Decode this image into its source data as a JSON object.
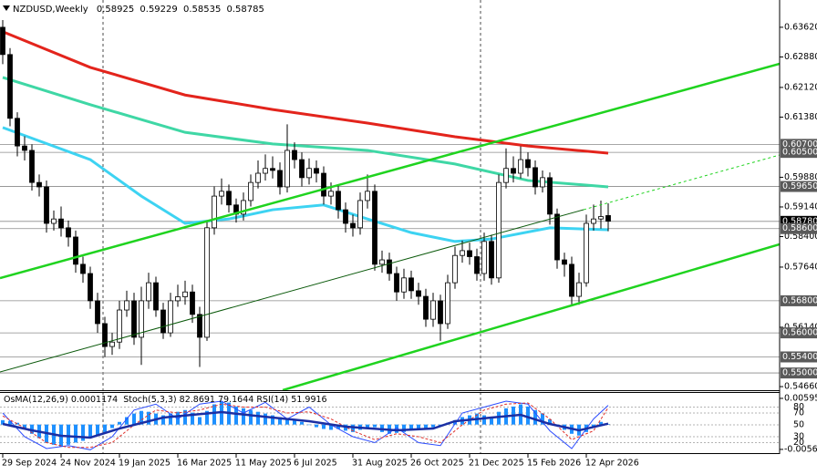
{
  "chart_data": [
    {
      "type": "candlestick",
      "symbol": "NZDUSD,Weekly",
      "categories": [
        "29 Sep 2024",
        null,
        null,
        null,
        null,
        null,
        null,
        null,
        "24 Nov 2024",
        null,
        null,
        null,
        null,
        null,
        null,
        null,
        "19 Jan 2025",
        null,
        null,
        null,
        null,
        null,
        null,
        null,
        "16 Mar 2025",
        null,
        null,
        null,
        null,
        null,
        null,
        null,
        "11 May 2025",
        null,
        null,
        null,
        null,
        null,
        null,
        null,
        "6 Jul 2025",
        null,
        null,
        null,
        null,
        null,
        null,
        null,
        "31 Aug 2025",
        null,
        null,
        null,
        null,
        null,
        null,
        null,
        "26 Oct 2025",
        null,
        null,
        null,
        null,
        null,
        null,
        null,
        "21 Dec 2025",
        null,
        null,
        null,
        null,
        null,
        null,
        null,
        "15 Feb 2026",
        null,
        null,
        null,
        null,
        null,
        null,
        null,
        "12 Apr 2026",
        null,
        null,
        null
      ],
      "open": [
        0.6362,
        0.6294,
        0.6135,
        0.6066,
        0.6055,
        0.5975,
        0.5964,
        0.5873,
        0.5884,
        0.5862,
        0.5839,
        0.5771,
        0.5748,
        0.568,
        0.5623,
        0.5566,
        0.5577,
        0.5657,
        0.568,
        0.5589,
        0.568,
        0.5725,
        0.5657,
        0.56,
        0.568,
        0.569,
        0.5702,
        0.5646,
        0.5589,
        0.5862,
        0.5941,
        0.5953,
        0.5919,
        0.5896,
        0.593,
        0.5975,
        0.5998,
        0.601,
        0.6005,
        0.5964,
        0.6055,
        0.6032,
        0.5987,
        0.601,
        0.5998,
        0.5941,
        0.5953,
        0.5907,
        0.5873,
        0.5862,
        0.593,
        0.5953,
        0.5771,
        0.5782,
        0.5748,
        0.5702,
        0.5737,
        0.5705,
        0.5691,
        0.5634,
        0.568,
        0.5623,
        0.5725,
        0.5793,
        0.5805,
        0.579,
        0.5748,
        0.5828,
        0.5737,
        0.5975,
        0.601,
        0.5998,
        0.6032,
        0.6012,
        0.5964,
        0.5987,
        0.5896,
        0.5782,
        0.5771,
        0.5691,
        0.5725,
        0.5873,
        0.5884,
        0.58925
      ],
      "high": [
        0.638,
        0.631,
        0.615,
        0.609,
        0.607,
        0.5995,
        0.598,
        0.5905,
        0.5915,
        0.588,
        0.5855,
        0.579,
        0.5765,
        0.57,
        0.564,
        0.56,
        0.568,
        0.5705,
        0.57,
        0.5715,
        0.575,
        0.574,
        0.5675,
        0.57,
        0.572,
        0.573,
        0.572,
        0.5665,
        0.588,
        0.5965,
        0.5985,
        0.597,
        0.5935,
        0.595,
        0.5995,
        0.603,
        0.6045,
        0.604,
        0.6025,
        0.612,
        0.6075,
        0.605,
        0.6035,
        0.603,
        0.6015,
        0.5975,
        0.597,
        0.5925,
        0.5895,
        0.595,
        0.5995,
        0.597,
        0.5805,
        0.58,
        0.5765,
        0.576,
        0.5755,
        0.5725,
        0.571,
        0.57,
        0.5695,
        0.5745,
        0.5815,
        0.583,
        0.5825,
        0.581,
        0.585,
        0.5845,
        0.5995,
        0.606,
        0.604,
        0.6065,
        0.605,
        0.603,
        0.6005,
        0.6,
        0.591,
        0.58,
        0.579,
        0.575,
        0.5895,
        0.592,
        0.593,
        0.59229
      ],
      "low": [
        0.627,
        0.6115,
        0.604,
        0.603,
        0.5955,
        0.594,
        0.585,
        0.5855,
        0.584,
        0.5815,
        0.575,
        0.5725,
        0.566,
        0.56,
        0.554,
        0.5545,
        0.556,
        0.564,
        0.557,
        0.552,
        0.566,
        0.564,
        0.5585,
        0.559,
        0.5665,
        0.567,
        0.5625,
        0.5515,
        0.558,
        0.5845,
        0.592,
        0.59,
        0.5875,
        0.588,
        0.5915,
        0.596,
        0.598,
        0.5985,
        0.5945,
        0.595,
        0.601,
        0.5965,
        0.597,
        0.5975,
        0.592,
        0.592,
        0.5885,
        0.585,
        0.584,
        0.5845,
        0.591,
        0.5755,
        0.575,
        0.573,
        0.568,
        0.5685,
        0.5685,
        0.567,
        0.5615,
        0.5615,
        0.558,
        0.561,
        0.571,
        0.5775,
        0.577,
        0.573,
        0.573,
        0.572,
        0.5725,
        0.596,
        0.5975,
        0.5985,
        0.599,
        0.5945,
        0.595,
        0.587,
        0.576,
        0.574,
        0.567,
        0.567,
        0.5715,
        0.5855,
        0.586,
        0.58535
      ],
      "close": [
        0.6294,
        0.6135,
        0.6066,
        0.6055,
        0.5975,
        0.5964,
        0.5873,
        0.5884,
        0.5862,
        0.5839,
        0.5771,
        0.5748,
        0.568,
        0.5623,
        0.5566,
        0.5577,
        0.5657,
        0.568,
        0.5589,
        0.568,
        0.5725,
        0.5657,
        0.56,
        0.568,
        0.569,
        0.5702,
        0.5646,
        0.5589,
        0.5862,
        0.5941,
        0.5953,
        0.5919,
        0.5896,
        0.593,
        0.5975,
        0.5998,
        0.601,
        0.6005,
        0.5964,
        0.6055,
        0.6032,
        0.5987,
        0.601,
        0.5998,
        0.5941,
        0.5953,
        0.5907,
        0.5873,
        0.5862,
        0.593,
        0.5953,
        0.5771,
        0.5782,
        0.5748,
        0.5702,
        0.5737,
        0.5705,
        0.5691,
        0.5634,
        0.568,
        0.5623,
        0.5725,
        0.5793,
        0.5805,
        0.579,
        0.5748,
        0.5828,
        0.5737,
        0.5975,
        0.601,
        0.5998,
        0.6032,
        0.6012,
        0.5964,
        0.5987,
        0.5896,
        0.5782,
        0.5771,
        0.5691,
        0.5725,
        0.5873,
        0.5884,
        0.589,
        0.58785
      ],
      "up_color": "#ffffff",
      "down_color": "#000000",
      "wick_color": "#000000",
      "ylim": [
        0.5457,
        0.643
      ],
      "yticks": [
        {
          "value": 0.6362,
          "label": "0.63620"
        },
        {
          "value": 0.6288,
          "label": "0.62880"
        },
        {
          "value": 0.6212,
          "label": "0.62120"
        },
        {
          "value": 0.6138,
          "label": "0.61380"
        },
        {
          "value": 0.5988,
          "label": "0.59880"
        },
        {
          "value": 0.5914,
          "label": "0.59140"
        },
        {
          "value": 0.584,
          "label": "0.58400"
        },
        {
          "value": 0.5764,
          "label": "0.57640"
        },
        {
          "value": 0.5614,
          "label": "0.56140"
        },
        {
          "value": 0.5466,
          "label": "0.54660"
        }
      ],
      "levels": [
        {
          "value": 0.607,
          "label": "0.60700",
          "color": "#5a5a5a"
        },
        {
          "value": 0.605,
          "label": "0.60500",
          "color": "#5a5a5a"
        },
        {
          "value": 0.5965,
          "label": "0.59650",
          "color": "#5a5a5a"
        },
        {
          "value": 0.5878,
          "label": "0.58780",
          "color": "#000000"
        },
        {
          "value": 0.586,
          "label": "0.58600",
          "color": "#5a5a5a"
        },
        {
          "value": 0.568,
          "label": "0.56800",
          "color": "#5a5a5a"
        },
        {
          "value": 0.56,
          "label": "0.56000",
          "color": "#5a5a5a"
        },
        {
          "value": 0.554,
          "label": "0.55400",
          "color": "#5a5a5a"
        },
        {
          "value": 0.55,
          "label": "0.55000",
          "color": "#5a5a5a"
        }
      ],
      "moving_averages": [
        {
          "color": "#e3241c",
          "x": [
            0,
            12,
            25,
            37,
            50,
            62,
            72,
            83
          ],
          "values": [
            0.6351,
            0.6262,
            0.6193,
            0.6157,
            0.6123,
            0.6089,
            0.6066,
            0.6048
          ]
        },
        {
          "color": "#3fd7a5",
          "x": [
            0,
            12,
            25,
            37,
            50,
            62,
            72,
            83
          ],
          "values": [
            0.6237,
            0.6169,
            0.61,
            0.6071,
            0.6055,
            0.6021,
            0.598,
            0.5964
          ]
        },
        {
          "color": "#3dd3f2",
          "x": [
            0,
            12,
            19,
            25,
            31,
            37,
            44,
            50,
            56,
            62,
            67,
            75,
            83
          ],
          "values": [
            0.6112,
            0.6032,
            0.5941,
            0.5873,
            0.5884,
            0.5907,
            0.5919,
            0.5884,
            0.585,
            0.5828,
            0.5834,
            0.5862,
            0.5857
          ]
        }
      ]
    },
    {
      "type": "oscillator",
      "osma_name": "OsMA(12,26,9)",
      "osma_color": "#1e90ff",
      "osma": [
        0.001,
        0.0008,
        0.0004,
        -0.001,
        -0.0021,
        -0.0031,
        -0.0041,
        -0.0046,
        -0.005,
        -0.0046,
        -0.0041,
        -0.0037,
        -0.0031,
        -0.0025,
        -0.0017,
        -0.0008,
        0.0006,
        0.0017,
        0.0025,
        0.0031,
        0.0029,
        0.0025,
        0.0021,
        0.0025,
        0.0029,
        0.0033,
        0.0027,
        0.0017,
        0.0031,
        0.0046,
        0.0052,
        0.005,
        0.0041,
        0.0037,
        0.0033,
        0.0029,
        0.0025,
        0.0021,
        0.0017,
        0.0012,
        0.001,
        0.0006,
        0,
        -0.0006,
        -0.001,
        -0.0012,
        -0.001,
        -0.0014,
        -0.0017,
        -0.0012,
        -0.0008,
        -0.0006,
        -0.0017,
        -0.0021,
        -0.0019,
        -0.0017,
        -0.0012,
        -0.001,
        -0.0008,
        -0.0006,
        -0.0004,
        0.0004,
        0.001,
        0.0017,
        0.0021,
        0.0025,
        0.0021,
        0.0017,
        0.0029,
        0.0037,
        0.0041,
        0.0046,
        0.0041,
        0.0033,
        0.0025,
        0.0012,
        0,
        -0.0012,
        -0.0021,
        -0.0025,
        -0.0017,
        -0.0004,
        0.0006,
        0.0001174
      ],
      "ylim": [
        -0.0065,
        0.0074
      ],
      "yticks": [
        0.0059585,
        -0.00565
      ],
      "stoch_name": "Stoch(5,3,3)",
      "rsi_name": "RSI(14)",
      "series": [
        {
          "color": "#2c4cff",
          "width": 1,
          "x": [
            0,
            3,
            6,
            9,
            12,
            15,
            18,
            21,
            24,
            27,
            30,
            33,
            36,
            39,
            42,
            45,
            48,
            51,
            54,
            57,
            60,
            63,
            66,
            69,
            72,
            75,
            78,
            81,
            83
          ],
          "values": [
            70,
            30,
            10,
            15,
            8,
            30,
            75,
            85,
            60,
            85,
            90,
            70,
            88,
            60,
            80,
            50,
            30,
            20,
            45,
            20,
            15,
            70,
            80,
            90,
            85,
            40,
            10,
            60,
            82.8691
          ]
        },
        {
          "color": "#e0302a",
          "width": 1,
          "dash": true,
          "x": [
            0,
            3,
            6,
            9,
            12,
            15,
            18,
            21,
            24,
            27,
            30,
            33,
            36,
            39,
            42,
            45,
            48,
            51,
            54,
            57,
            60,
            63,
            66,
            69,
            72,
            75,
            78,
            81,
            83
          ],
          "values": [
            65,
            45,
            20,
            12,
            12,
            20,
            50,
            75,
            70,
            75,
            85,
            80,
            80,
            70,
            72,
            60,
            40,
            25,
            35,
            30,
            20,
            50,
            75,
            85,
            87,
            60,
            25,
            40,
            79.1644
          ]
        },
        {
          "color": "#1b2fa3",
          "width": 2.5,
          "x": [
            0,
            4,
            8,
            12,
            16,
            22,
            30,
            37,
            42,
            47,
            54,
            59,
            62,
            67,
            71,
            75,
            79,
            83
          ],
          "values": [
            51.5,
            40.8,
            31.5,
            28.5,
            43.8,
            62.3,
            71.5,
            62.3,
            56.2,
            46.9,
            40.8,
            43.8,
            56.2,
            62.3,
            66.9,
            51.5,
            40.8,
            51.9916
          ]
        }
      ],
      "y2lim": [
        2.3,
        105.4
      ],
      "y2ticks": [
        80,
        70,
        50,
        30,
        20
      ]
    }
  ]
}
